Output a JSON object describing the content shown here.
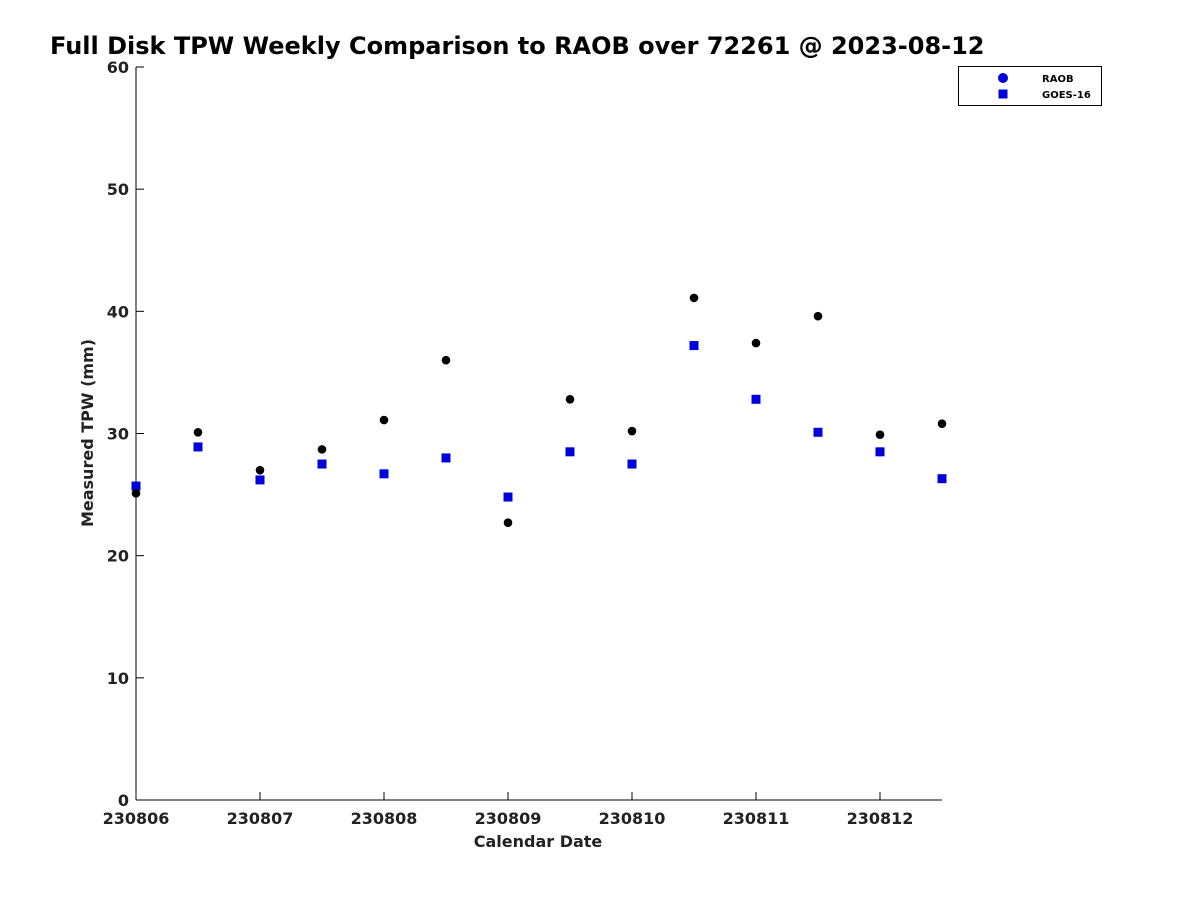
{
  "chart_data": {
    "type": "scatter",
    "title": "Full Disk TPW Weekly Comparison to RAOB over 72261 @ 2023-08-12",
    "xlabel": "Calendar Date",
    "ylabel": "Measured TPW (mm)",
    "xlim": [
      "2023-08-06",
      "2023-08-12T12:00"
    ],
    "ylim": [
      0,
      60
    ],
    "x_ticks": [
      {
        "date": "2023-08-06",
        "label": "230806"
      },
      {
        "date": "2023-08-07",
        "label": "230807"
      },
      {
        "date": "2023-08-08",
        "label": "230808"
      },
      {
        "date": "2023-08-09",
        "label": "230809"
      },
      {
        "date": "2023-08-10",
        "label": "230810"
      },
      {
        "date": "2023-08-11",
        "label": "230811"
      },
      {
        "date": "2023-08-12",
        "label": "230812"
      }
    ],
    "y_ticks": [
      0,
      10,
      20,
      30,
      40,
      50,
      60
    ],
    "grid": false,
    "legend_position": "top-right",
    "x": [
      "2023-08-06T00:00",
      "2023-08-06T12:00",
      "2023-08-07T00:00",
      "2023-08-07T12:00",
      "2023-08-08T00:00",
      "2023-08-08T12:00",
      "2023-08-09T00:00",
      "2023-08-09T12:00",
      "2023-08-10T00:00",
      "2023-08-10T12:00",
      "2023-08-11T00:00",
      "2023-08-11T12:00",
      "2023-08-12T00:00",
      "2023-08-12T12:00"
    ],
    "series": [
      {
        "name": "RAOB",
        "marker": "circle",
        "color": "#000000",
        "values": [
          25.1,
          30.1,
          27.0,
          28.7,
          31.1,
          36.0,
          22.7,
          32.8,
          30.2,
          41.1,
          37.4,
          39.6,
          29.9,
          30.8
        ]
      },
      {
        "name": "GOES-16",
        "marker": "square",
        "color": "#0000dd",
        "values": [
          25.7,
          28.9,
          26.2,
          27.5,
          26.7,
          28.0,
          24.8,
          28.5,
          27.5,
          37.2,
          32.8,
          30.1,
          28.5,
          26.3
        ]
      }
    ],
    "legend_marker_colors": {
      "RAOB": "#0000dd",
      "GOES-16": "#0000dd"
    }
  }
}
